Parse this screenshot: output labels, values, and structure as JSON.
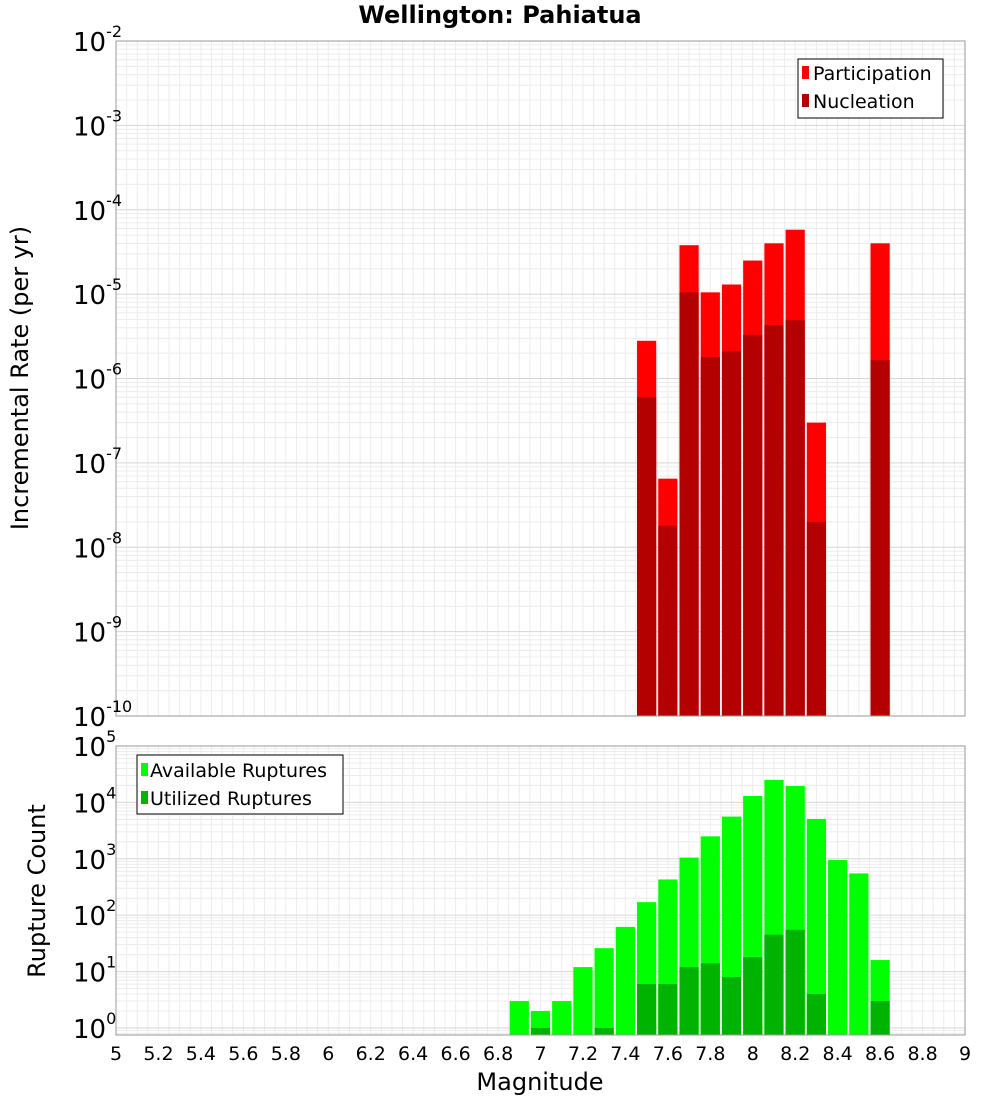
{
  "chart_data": [
    {
      "type": "bar",
      "title": "Wellington: Pahiatua",
      "xlabel": "Magnitude",
      "ylabel": "Incremental Rate (per yr)",
      "yscale": "log",
      "ylim": [
        1e-10,
        0.01
      ],
      "xlim": [
        5,
        9
      ],
      "x": [
        7.5,
        7.6,
        7.7,
        7.8,
        7.9,
        8.0,
        8.1,
        8.2,
        8.3,
        8.6
      ],
      "series": [
        {
          "name": "Participation",
          "color": "#ff0000",
          "values": [
            2.8e-06,
            6.5e-08,
            3.8e-05,
            1.05e-05,
            1.3e-05,
            2.5e-05,
            4e-05,
            5.8e-05,
            3e-07,
            4e-05
          ]
        },
        {
          "name": "Nucleation",
          "color": "#b30000",
          "values": [
            6e-07,
            1.8e-08,
            1.05e-05,
            1.8e-06,
            2.1e-06,
            3.3e-06,
            4.3e-06,
            4.9e-06,
            2e-08,
            1.65e-06
          ]
        }
      ],
      "legend": "top-right"
    },
    {
      "type": "bar",
      "xlabel": "Magnitude",
      "ylabel": "Rupture Count",
      "yscale": "log",
      "ylim": [
        0.75,
        100000.0
      ],
      "xlim": [
        5,
        9
      ],
      "x": [
        6.9,
        7.0,
        7.1,
        7.2,
        7.3,
        7.4,
        7.5,
        7.6,
        7.7,
        7.8,
        7.9,
        8.0,
        8.1,
        8.2,
        8.3,
        8.4,
        8.5,
        8.6
      ],
      "series": [
        {
          "name": "Available Ruptures",
          "color": "#00ff00",
          "values": [
            3,
            2,
            3,
            12,
            26,
            62,
            170,
            430,
            1050,
            2500,
            5600,
            13000,
            25000,
            19500,
            5100,
            950,
            550,
            16
          ]
        },
        {
          "name": "Utilized Ruptures",
          "color": "#00b300",
          "values": [
            0,
            1,
            0,
            0,
            1,
            0,
            6,
            6,
            12,
            14,
            8,
            18,
            45,
            55,
            4,
            0,
            0,
            3
          ]
        }
      ],
      "legend": "top-left"
    }
  ],
  "x_ticks": [
    "5",
    "5.2",
    "5.4",
    "5.6",
    "5.8",
    "6",
    "6.2",
    "6.4",
    "6.6",
    "6.8",
    "7",
    "7.2",
    "7.4",
    "7.6",
    "7.8",
    "8",
    "8.2",
    "8.4",
    "8.6",
    "8.8",
    "9"
  ],
  "top_y_ticks": [
    {
      "base": "10",
      "exp": "-2"
    },
    {
      "base": "10",
      "exp": "-3"
    },
    {
      "base": "10",
      "exp": "-4"
    },
    {
      "base": "10",
      "exp": "-5"
    },
    {
      "base": "10",
      "exp": "-6"
    },
    {
      "base": "10",
      "exp": "-7"
    },
    {
      "base": "10",
      "exp": "-8"
    },
    {
      "base": "10",
      "exp": "-9"
    },
    {
      "base": "10",
      "exp": "-10"
    }
  ],
  "bottom_y_ticks": [
    {
      "base": "10",
      "exp": "5"
    },
    {
      "base": "10",
      "exp": "4"
    },
    {
      "base": "10",
      "exp": "3"
    },
    {
      "base": "10",
      "exp": "2"
    },
    {
      "base": "10",
      "exp": "1"
    },
    {
      "base": "10",
      "exp": "0"
    }
  ]
}
